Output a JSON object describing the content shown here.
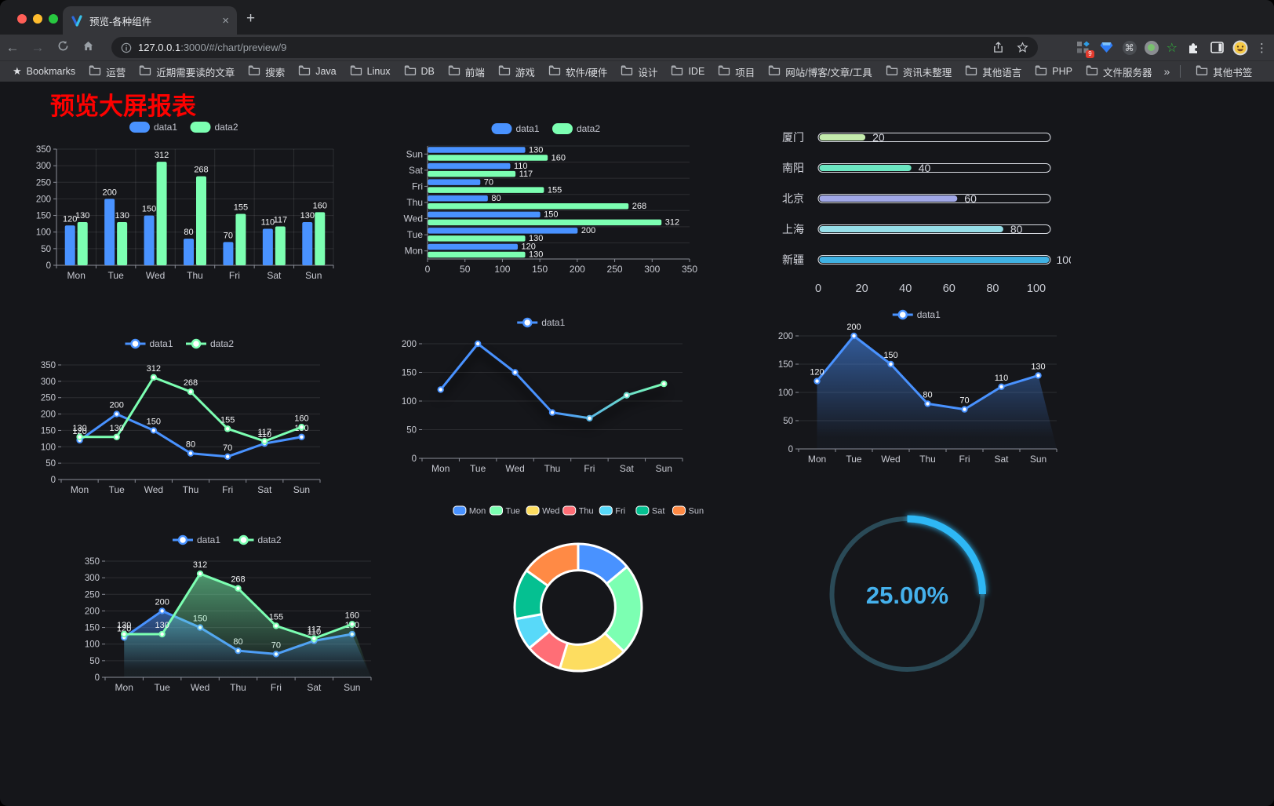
{
  "browser": {
    "tab_title": "预览-各种组件",
    "new_tab_glyph": "+",
    "close_glyph": "×",
    "url_host": "127.0.0.1",
    "url_rest": ":3000/#/chart/preview/9",
    "bookmarks_star_glyph": "★",
    "bookmarks_label": "Bookmarks",
    "folders": [
      "运营",
      "近期需要读的文章",
      "搜索",
      "Java",
      "Linux",
      "DB",
      "前端",
      "游戏",
      "软件/硬件",
      "设计",
      "IDE",
      "项目",
      "网站/博客/文章/工具",
      "资讯未整理",
      "其他语言",
      "PHP",
      "文件服务器"
    ],
    "overflow_chevron": "»",
    "other_bookmarks_label": "其他书签",
    "extension_badge": "9",
    "command_glyph": "⌘",
    "green_star_glyph": "☆",
    "menu_glyph": "⋮",
    "back_glyph": "←",
    "forward_glyph": "→"
  },
  "page": {
    "title": "预览大屏报表"
  },
  "theme": {
    "background": "#15161a",
    "series_blue": "#4992ff",
    "series_green": "#7cffb2",
    "axis_text": "#c8cad2",
    "grid_line": "rgba(255,255,255,0.10)",
    "axis_line": "#8a8d98",
    "value_label": "#f2f3f5",
    "title_red": "#fd0100"
  },
  "chart_data": [
    {
      "id": "bar-vertical",
      "type": "bar",
      "categories": [
        "Mon",
        "Tue",
        "Wed",
        "Thu",
        "Fri",
        "Sat",
        "Sun"
      ],
      "series": [
        {
          "name": "data1",
          "color": "#4992ff",
          "values": [
            120,
            200,
            150,
            80,
            70,
            110,
            130
          ]
        },
        {
          "name": "data2",
          "color": "#7cffb2",
          "values": [
            130,
            130,
            312,
            268,
            155,
            117,
            160
          ]
        }
      ],
      "ylim": [
        0,
        350
      ],
      "ytick_step": 50,
      "legend_position": "top",
      "grid": true,
      "value_labels": true
    },
    {
      "id": "bar-horizontal",
      "type": "bar",
      "orientation": "horizontal",
      "categories": [
        "Mon",
        "Tue",
        "Wed",
        "Thu",
        "Fri",
        "Sat",
        "Sun"
      ],
      "row_order_top_to_bottom": [
        "Sun",
        "Sat",
        "Fri",
        "Thu",
        "Wed",
        "Tue",
        "Mon"
      ],
      "series": [
        {
          "name": "data1",
          "color": "#4992ff",
          "values": [
            120,
            200,
            150,
            80,
            70,
            110,
            130
          ]
        },
        {
          "name": "data2",
          "color": "#7cffb2",
          "values": [
            130,
            130,
            312,
            268,
            155,
            117,
            160
          ]
        }
      ],
      "xlim": [
        0,
        350
      ],
      "xtick_step": 50,
      "legend_position": "top",
      "grid": true,
      "value_labels": true
    },
    {
      "id": "progress-bars",
      "type": "bar",
      "orientation": "horizontal-progress",
      "items": [
        {
          "label": "厦门",
          "value": 20,
          "color": "#c4ebad"
        },
        {
          "label": "南阳",
          "value": 40,
          "color": "#6be6c1"
        },
        {
          "label": "北京",
          "value": 60,
          "color": "#a0a7e6"
        },
        {
          "label": "上海",
          "value": 80,
          "color": "#96dee8"
        },
        {
          "label": "新疆",
          "value": 100,
          "color": "#3fb1e3"
        }
      ],
      "xlim": [
        0,
        100
      ],
      "xticks": [
        0,
        20,
        40,
        60,
        80,
        100
      ]
    },
    {
      "id": "line-two-series",
      "type": "line",
      "categories": [
        "Mon",
        "Tue",
        "Wed",
        "Thu",
        "Fri",
        "Sat",
        "Sun"
      ],
      "series": [
        {
          "name": "data1",
          "color": "#4992ff",
          "values": [
            120,
            200,
            150,
            80,
            70,
            110,
            130
          ]
        },
        {
          "name": "data2",
          "color": "#7cffb2",
          "values": [
            130,
            130,
            312,
            268,
            155,
            117,
            160
          ]
        }
      ],
      "ylim": [
        0,
        350
      ],
      "ytick_step": 50,
      "legend_position": "top",
      "value_labels": true
    },
    {
      "id": "line-gradient",
      "type": "line",
      "categories": [
        "Mon",
        "Tue",
        "Wed",
        "Thu",
        "Fri",
        "Sat",
        "Sun"
      ],
      "series": [
        {
          "name": "data1",
          "gradient": [
            "#4992ff",
            "#7cffb2"
          ],
          "values": [
            120,
            200,
            150,
            80,
            70,
            110,
            130
          ]
        }
      ],
      "ylim": [
        0,
        200
      ],
      "ytick_step": 50,
      "legend_position": "top",
      "value_labels": false,
      "shadow": true
    },
    {
      "id": "area-single",
      "type": "area",
      "categories": [
        "Mon",
        "Tue",
        "Wed",
        "Thu",
        "Fri",
        "Sat",
        "Sun"
      ],
      "series": [
        {
          "name": "data1",
          "color": "#4992ff",
          "values": [
            120,
            200,
            150,
            80,
            70,
            110,
            130
          ],
          "area": true
        }
      ],
      "ylim": [
        0,
        200
      ],
      "ytick_step": 50,
      "legend_position": "top",
      "value_labels": true
    },
    {
      "id": "area-two-series",
      "type": "area",
      "categories": [
        "Mon",
        "Tue",
        "Wed",
        "Thu",
        "Fri",
        "Sat",
        "Sun"
      ],
      "series": [
        {
          "name": "data1",
          "color": "#4992ff",
          "values": [
            120,
            200,
            150,
            80,
            70,
            110,
            130
          ],
          "area": true
        },
        {
          "name": "data2",
          "color": "#7cffb2",
          "values": [
            130,
            130,
            312,
            268,
            155,
            117,
            160
          ],
          "area": true
        }
      ],
      "ylim": [
        0,
        350
      ],
      "ytick_step": 50,
      "legend_position": "top",
      "value_labels": true
    },
    {
      "id": "donut",
      "type": "pie",
      "inner_radius_ratio": 0.585,
      "slices": [
        {
          "label": "Mon",
          "value": 120,
          "color": "#4992ff"
        },
        {
          "label": "Tue",
          "value": 200,
          "color": "#7cffb2"
        },
        {
          "label": "Wed",
          "value": 150,
          "color": "#fddd60"
        },
        {
          "label": "Thu",
          "value": 80,
          "color": "#ff6e76"
        },
        {
          "label": "Fri",
          "value": 70,
          "color": "#58d9f9"
        },
        {
          "label": "Sat",
          "value": 110,
          "color": "#05c091"
        },
        {
          "label": "Sun",
          "value": 130,
          "color": "#ff8a45"
        }
      ],
      "legend_position": "top"
    },
    {
      "id": "gauge",
      "type": "gauge",
      "percent": 25,
      "value_label": "25.00%",
      "color": "#2db7f5",
      "track_color": "#2a4a57",
      "text_color": "#45b1ec"
    }
  ]
}
